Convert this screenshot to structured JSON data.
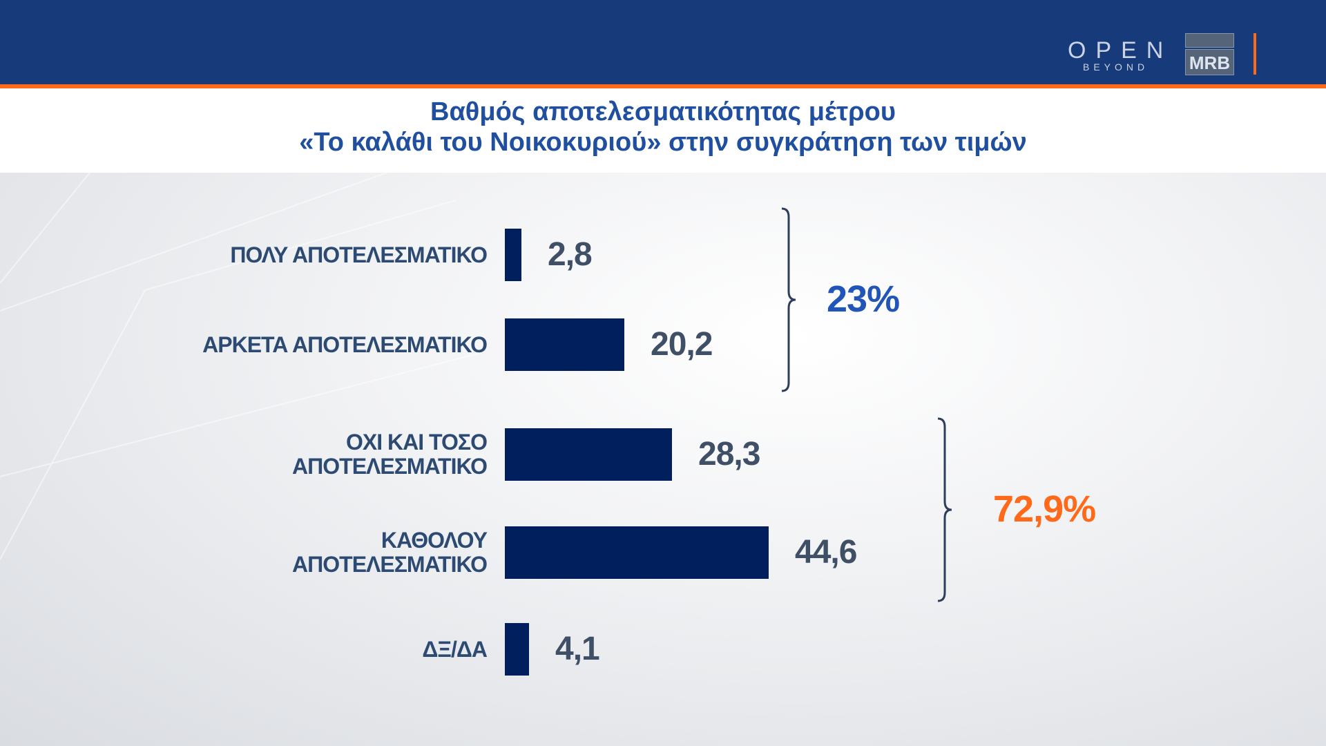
{
  "header": {
    "logo_open": "OPEN",
    "logo_open_sub": "BEYOND",
    "logo_mrb": "MRB"
  },
  "title": {
    "line1": "Βαθμός αποτελεσματικότητας μέτρου",
    "line2": "«Το καλάθι του Νοικοκυριού» στην συγκράτηση των τιμών"
  },
  "colors": {
    "bar": "#001f5c",
    "header": "#173a7a",
    "accent_orange": "#ff6a1a",
    "positive_group": "#2156b8",
    "negative_group": "#ff6a1a"
  },
  "chart_data": {
    "type": "bar",
    "orientation": "horizontal",
    "title": "Βαθμός αποτελεσματικότητας μέτρου «Το καλάθι του Νοικοκυριού» στην συγκράτηση των τιμών",
    "categories": [
      [
        "ΠΟΛΥ ΑΠΟΤΕΛΕΣΜΑΤΙΚΟ"
      ],
      [
        "ΑΡΚΕΤΑ ΑΠΟΤΕΛΕΣΜΑΤΙΚΟ"
      ],
      [
        "ΟΧΙ ΚΑΙ ΤΟΣΟ",
        "ΑΠΟΤΕΛΕΣΜΑΤΙΚΟ"
      ],
      [
        "ΚΑΘΟΛΟΥ",
        "ΑΠΟΤΕΛΕΣΜΑΤΙΚΟ"
      ],
      [
        "ΔΞ/ΔΑ"
      ]
    ],
    "values": [
      2.8,
      20.2,
      28.3,
      44.6,
      4.1
    ],
    "value_labels": [
      "2,8",
      "20,2",
      "28,3",
      "44,6",
      "4,1"
    ],
    "groups": [
      {
        "label": "23%",
        "members": [
          0,
          1
        ]
      },
      {
        "label": "72,9%",
        "members": [
          2,
          3
        ]
      }
    ],
    "grid": false
  }
}
